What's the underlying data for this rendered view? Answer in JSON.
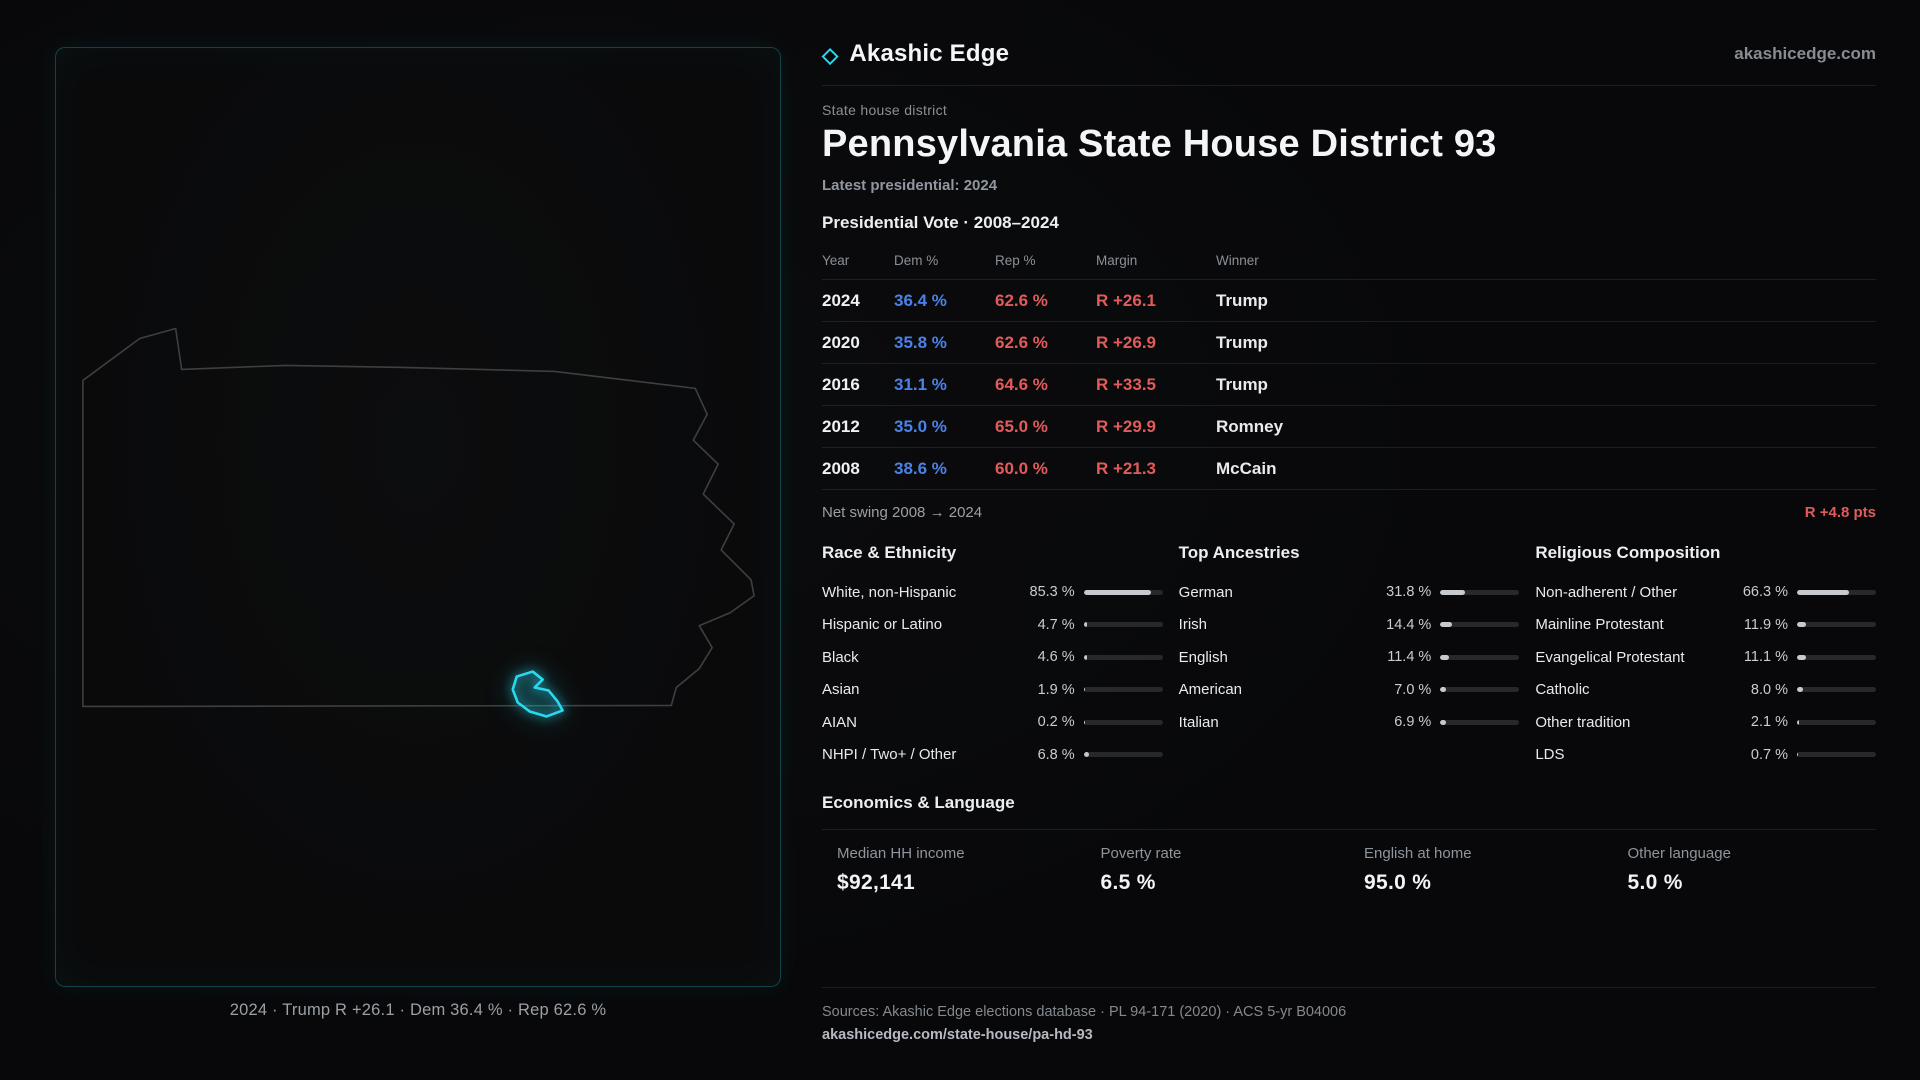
{
  "colors": {
    "accent": "#2ad9ee",
    "dem_blue": "#4a82e8",
    "rep_red": "#e15b5b",
    "bar_fill": "#c6c9cd",
    "bar_track": "#26282b"
  },
  "brand": {
    "name": "Akashic Edge",
    "domain": "akashicedge.com",
    "diamond_icon": "◇"
  },
  "map": {
    "caption": "2024 · Trump R +26.1 · Dem 36.4 % · Rep 62.6 %"
  },
  "header": {
    "eyebrow": "State house district",
    "title": "Pennsylvania State House District 93",
    "subtitle": "Latest presidential: 2024"
  },
  "vote": {
    "heading": "Presidential Vote · 2008–2024",
    "columns": [
      "Year",
      "Dem %",
      "Rep %",
      "Margin",
      "Winner"
    ],
    "rows": [
      {
        "year": "2024",
        "dem": "36.4 %",
        "rep": "62.6 %",
        "margin": "R +26.1",
        "winner": "Trump"
      },
      {
        "year": "2020",
        "dem": "35.8 %",
        "rep": "62.6 %",
        "margin": "R +26.9",
        "winner": "Trump"
      },
      {
        "year": "2016",
        "dem": "31.1 %",
        "rep": "64.6 %",
        "margin": "R +33.5",
        "winner": "Trump"
      },
      {
        "year": "2012",
        "dem": "35.0 %",
        "rep": "65.0 %",
        "margin": "R +29.9",
        "winner": "Romney"
      },
      {
        "year": "2008",
        "dem": "38.6 %",
        "rep": "60.0 %",
        "margin": "R +21.3",
        "winner": "McCain"
      }
    ],
    "net_swing_label": "Net swing 2008 → 2024",
    "net_swing_value": "R +4.8 pts"
  },
  "demographics": {
    "race": {
      "heading": "Race & Ethnicity",
      "rows": [
        {
          "label": "White, non-Hispanic",
          "value": "85.3 %",
          "pct": 85.3
        },
        {
          "label": "Hispanic or Latino",
          "value": "4.7 %",
          "pct": 4.7
        },
        {
          "label": "Black",
          "value": "4.6 %",
          "pct": 4.6
        },
        {
          "label": "Asian",
          "value": "1.9 %",
          "pct": 1.9
        },
        {
          "label": "AIAN",
          "value": "0.2 %",
          "pct": 0.2
        },
        {
          "label": "NHPI / Two+ / Other",
          "value": "6.8 %",
          "pct": 6.8
        }
      ]
    },
    "ancestries": {
      "heading": "Top Ancestries",
      "rows": [
        {
          "label": "German",
          "value": "31.8 %",
          "pct": 31.8
        },
        {
          "label": "Irish",
          "value": "14.4 %",
          "pct": 14.4
        },
        {
          "label": "English",
          "value": "11.4 %",
          "pct": 11.4
        },
        {
          "label": "American",
          "value": "7.0 %",
          "pct": 7.0
        },
        {
          "label": "Italian",
          "value": "6.9 %",
          "pct": 6.9
        }
      ]
    },
    "religion": {
      "heading": "Religious Composition",
      "rows": [
        {
          "label": "Non-adherent / Other",
          "value": "66.3 %",
          "pct": 66.3
        },
        {
          "label": "Mainline Protestant",
          "value": "11.9 %",
          "pct": 11.9
        },
        {
          "label": "Evangelical Protestant",
          "value": "11.1 %",
          "pct": 11.1
        },
        {
          "label": "Catholic",
          "value": "8.0 %",
          "pct": 8.0
        },
        {
          "label": "Other tradition",
          "value": "2.1 %",
          "pct": 2.1
        },
        {
          "label": "LDS",
          "value": "0.7 %",
          "pct": 0.7
        }
      ]
    }
  },
  "economics": {
    "heading": "Economics & Language",
    "stats": [
      {
        "label": "Median HH income",
        "value": "$92,141"
      },
      {
        "label": "Poverty rate",
        "value": "6.5 %"
      },
      {
        "label": "English at home",
        "value": "95.0 %"
      },
      {
        "label": "Other language",
        "value": "5.0 %"
      }
    ]
  },
  "footer": {
    "sources": "Sources: Akashic Edge elections database · PL 94-171 (2020) · ACS 5-yr B04006",
    "permalink": "akashicedge.com/state-house/pa-hd-93"
  }
}
